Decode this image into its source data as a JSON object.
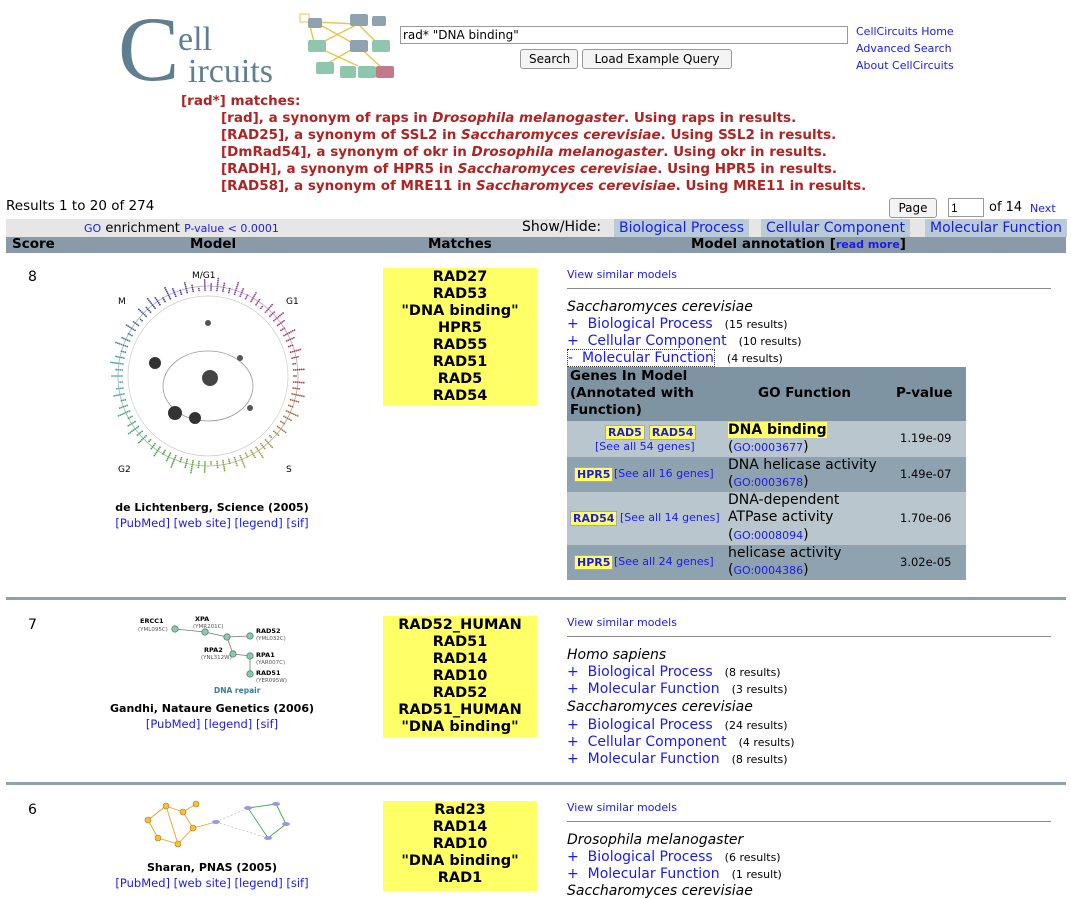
{
  "header": {
    "logo_text_1": "ell",
    "logo_text_2": "ircuits",
    "search_value": "rad* \"DNA binding\"",
    "search_button": "Search",
    "example_button": "Load Example Query",
    "links": [
      "CellCircuits Home",
      "Advanced Search",
      "About CellCircuits"
    ]
  },
  "synonyms": {
    "heading": "[rad*] matches:",
    "items": [
      {
        "pre": "[rad], a synonym of raps in ",
        "species": "Drosophila melanogaster",
        "post": ". Using raps in results."
      },
      {
        "pre": "[RAD25], a synonym of SSL2 in ",
        "species": "Saccharomyces cerevisiae",
        "post": ". Using SSL2 in results."
      },
      {
        "pre": "[DmRad54], a synonym of okr in ",
        "species": "Drosophila melanogaster",
        "post": ". Using okr in results."
      },
      {
        "pre": "[RADH], a synonym of HPR5 in ",
        "species": "Saccharomyces cerevisiae",
        "post": ". Using HPR5 in results."
      },
      {
        "pre": "[RAD58], a synonym of MRE11 in ",
        "species": "Saccharomyces cerevisiae",
        "post": ". Using MRE11 in results."
      }
    ]
  },
  "results": {
    "count": "Results 1 to 20 of 274",
    "page_button": "Page",
    "page_value": "1",
    "of_pages": "of 14",
    "next": "Next"
  },
  "filter": {
    "go_label": "GO",
    "enrichment": "enrichment",
    "pvalue_link": "P-value < 0.0001",
    "showhide": "Show/Hide:",
    "toggles": [
      "Biological Process",
      "Cellular Component",
      "Molecular Function"
    ]
  },
  "columns": {
    "score": "Score",
    "model": "Model",
    "matches": "Matches",
    "annotation": "Model annotation [",
    "read_more": "read more",
    "annotation_end": "]"
  },
  "rows": [
    {
      "score": "8",
      "matches": [
        "RAD27",
        "RAD53",
        "\"DNA binding\"",
        "HPR5",
        "RAD55",
        "RAD51",
        "RAD5",
        "RAD54"
      ],
      "cite": "de Lichtenberg, Science (2005)",
      "links": [
        "[PubMed]",
        "[web site]",
        "[legend]",
        "[sif]"
      ],
      "similar": "View similar models",
      "species": "Saccharomyces cerevisiae",
      "go": [
        {
          "sign": "+",
          "label": "Biological Process",
          "count": "(15 results)"
        },
        {
          "sign": "+",
          "label": "Cellular Component",
          "count": "(10 results)"
        },
        {
          "sign": "-",
          "label": "Molecular Function",
          "count": "(4 results)"
        }
      ],
      "img_labels": {
        "top": "M/G1",
        "left": "M",
        "right": "G1",
        "bl": "G2",
        "br": "S"
      },
      "go_table": {
        "headers": [
          "Genes In Model (Annotated with Function)",
          "GO Function",
          "P-value"
        ],
        "rows": [
          {
            "genes": [
              "RAD5",
              "RAD54"
            ],
            "see_all": "[See all 54 genes]",
            "func": "DNA binding",
            "go": "GO:0003677",
            "pvalue": "1.19e-09"
          },
          {
            "genes": [
              "HPR5"
            ],
            "see_all": "[See all 16 genes]",
            "func": "DNA helicase activity",
            "go": "GO:0003678",
            "pvalue": "1.49e-07"
          },
          {
            "genes": [
              "RAD54"
            ],
            "see_all": "[See all 14 genes]",
            "func": "DNA-dependent ATPase activity",
            "go": "GO:0008094",
            "pvalue": "1.70e-06"
          },
          {
            "genes": [
              "HPR5"
            ],
            "see_all": "[See all 24 genes]",
            "func": "helicase activity",
            "go": "GO:0004386",
            "pvalue": "3.02e-05"
          }
        ]
      }
    },
    {
      "score": "7",
      "matches": [
        "RAD52_HUMAN",
        "RAD51",
        "RAD14",
        "RAD10",
        "RAD52",
        "RAD51_HUMAN",
        "\"DNA binding\""
      ],
      "cite": "Gandhi, Nataure Genetics (2006)",
      "links": [
        "[PubMed]",
        "[legend]",
        "[sif]"
      ],
      "similar": "View similar models",
      "img_labels": {
        "n1": "ERCC1",
        "n1s": "(YML095C)",
        "n2": "XPA",
        "n2s": "(YMR201C)",
        "n3": "RAD52",
        "n3s": "(YML032C)",
        "n4": "RPA2",
        "n4s": "(YNL312W)",
        "n5": "RPA1",
        "n5s": "(YAR007C)",
        "n6": "RAD51",
        "n6s": "(YER095W)",
        "caption": "DNA repair"
      },
      "blocks": [
        {
          "species": "Homo sapiens",
          "go": [
            {
              "sign": "+",
              "label": "Biological Process",
              "count": "(8 results)"
            },
            {
              "sign": "+",
              "label": "Molecular Function",
              "count": "(3 results)"
            }
          ]
        },
        {
          "species": "Saccharomyces cerevisiae",
          "go": [
            {
              "sign": "+",
              "label": "Biological Process",
              "count": "(24 results)"
            },
            {
              "sign": "+",
              "label": "Cellular Component",
              "count": "(4 results)"
            },
            {
              "sign": "+",
              "label": "Molecular Function",
              "count": "(8 results)"
            }
          ]
        }
      ]
    },
    {
      "score": "6",
      "matches": [
        "Rad23",
        "RAD14",
        "RAD10",
        "\"DNA binding\"",
        "RAD1"
      ],
      "cite": "Sharan, PNAS (2005)",
      "links": [
        "[PubMed]",
        "[web site]",
        "[legend]",
        "[sif]"
      ],
      "similar": "View similar models",
      "species": "Drosophila melanogaster",
      "go": [
        {
          "sign": "+",
          "label": "Biological Process",
          "count": "(6 results)"
        },
        {
          "sign": "+",
          "label": "Molecular Function",
          "count": "(1 result)"
        }
      ],
      "next_species": "Saccharomyces cerevisiae"
    }
  ]
}
